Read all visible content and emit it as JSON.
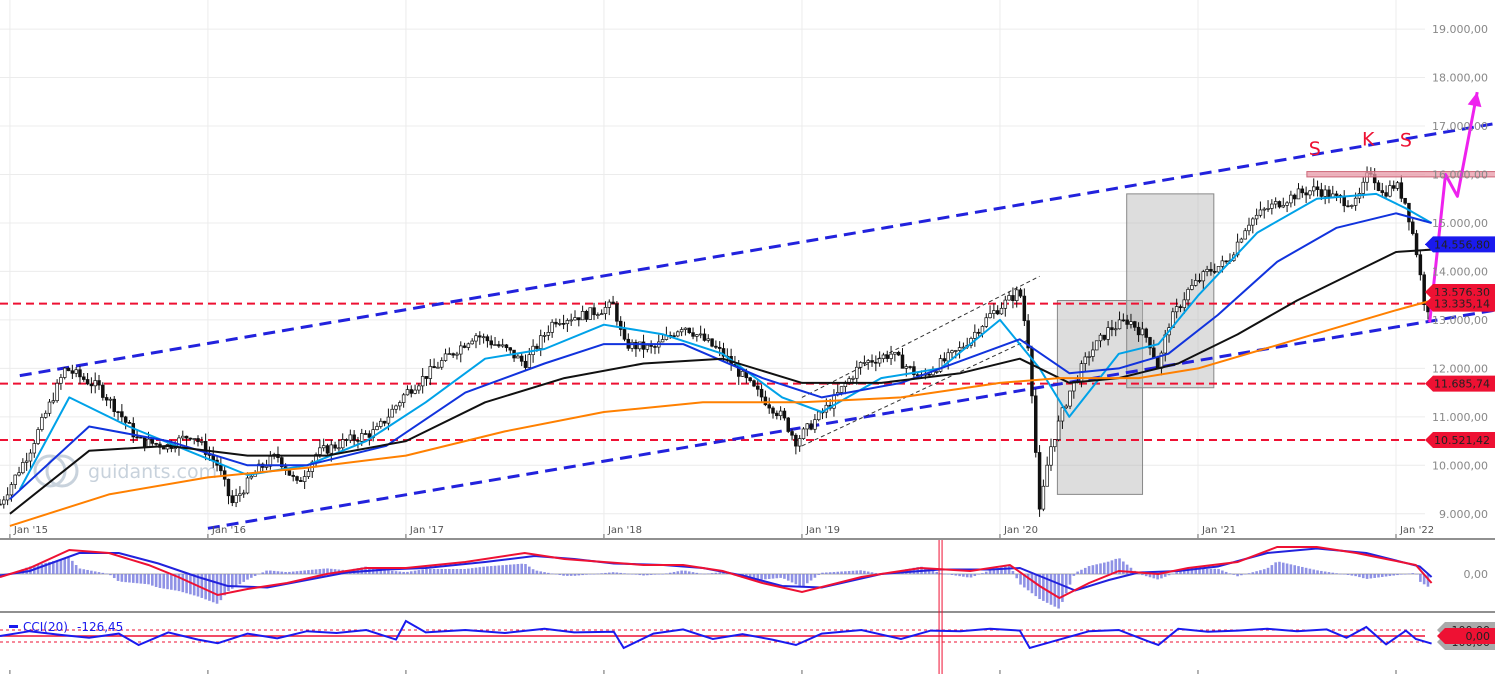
{
  "chart_data": {
    "type": "candlestick",
    "price_axis": {
      "range": [
        8500,
        19600
      ],
      "ticks": [
        "9.000,00",
        "10.000,00",
        "11.000,00",
        "12.000,00",
        "13.000,00",
        "14.000,00",
        "15.000,00",
        "16.000,00",
        "17.000,00",
        "18.000,00",
        "19.000,00"
      ],
      "tick_values": [
        9000,
        10000,
        11000,
        12000,
        13000,
        14000,
        15000,
        16000,
        17000,
        18000,
        19000
      ]
    },
    "time_axis": {
      "range": [
        2014.95,
        2022.5
      ],
      "ticks": [
        "Jan '15",
        "Jan '16",
        "Jan '17",
        "Jan '18",
        "Jan '19",
        "Jan '20",
        "Jan '21",
        "Jan '22"
      ],
      "tick_values": [
        2015,
        2016,
        2017,
        2018,
        2019,
        2020,
        2021,
        2022
      ]
    },
    "price_path": [
      [
        2014.95,
        9200
      ],
      [
        2015.1,
        10300
      ],
      [
        2015.28,
        12000
      ],
      [
        2015.45,
        11600
      ],
      [
        2015.55,
        11100
      ],
      [
        2015.65,
        10500
      ],
      [
        2015.8,
        10400
      ],
      [
        2015.92,
        10650
      ],
      [
        2016.05,
        10000
      ],
      [
        2016.12,
        9200
      ],
      [
        2016.25,
        9900
      ],
      [
        2016.35,
        10200
      ],
      [
        2016.45,
        9600
      ],
      [
        2016.55,
        10250
      ],
      [
        2016.7,
        10500
      ],
      [
        2016.85,
        10700
      ],
      [
        2017.0,
        11500
      ],
      [
        2017.2,
        12200
      ],
      [
        2017.35,
        12700
      ],
      [
        2017.5,
        12400
      ],
      [
        2017.6,
        12100
      ],
      [
        2017.75,
        13000
      ],
      [
        2017.9,
        13100
      ],
      [
        2018.05,
        13300
      ],
      [
        2018.1,
        12500
      ],
      [
        2018.25,
        12400
      ],
      [
        2018.4,
        12900
      ],
      [
        2018.5,
        12600
      ],
      [
        2018.6,
        12300
      ],
      [
        2018.75,
        11600
      ],
      [
        2018.9,
        11000
      ],
      [
        2018.97,
        10500
      ],
      [
        2019.15,
        11300
      ],
      [
        2019.3,
        12100
      ],
      [
        2019.45,
        12300
      ],
      [
        2019.6,
        11800
      ],
      [
        2019.8,
        12400
      ],
      [
        2019.95,
        13100
      ],
      [
        2020.1,
        13600
      ],
      [
        2020.15,
        12300
      ],
      [
        2020.2,
        9000
      ],
      [
        2020.25,
        10300
      ],
      [
        2020.35,
        11500
      ],
      [
        2020.45,
        12300
      ],
      [
        2020.55,
        12800
      ],
      [
        2020.65,
        13000
      ],
      [
        2020.75,
        12600
      ],
      [
        2020.8,
        12000
      ],
      [
        2020.85,
        12900
      ],
      [
        2020.95,
        13600
      ],
      [
        2021.05,
        14000
      ],
      [
        2021.15,
        14200
      ],
      [
        2021.25,
        15000
      ],
      [
        2021.35,
        15300
      ],
      [
        2021.5,
        15600
      ],
      [
        2021.6,
        15700
      ],
      [
        2021.7,
        15500
      ],
      [
        2021.8,
        15400
      ],
      [
        2021.87,
        16100
      ],
      [
        2021.93,
        15600
      ],
      [
        2022.0,
        15800
      ],
      [
        2022.05,
        15400
      ],
      [
        2022.1,
        14500
      ],
      [
        2022.15,
        13200
      ],
      [
        2022.17,
        13300
      ]
    ],
    "series": [
      {
        "name": "",
        "color": "#00a2e8",
        "values": [
          [
            2015.05,
            9500
          ],
          [
            2015.3,
            11400
          ],
          [
            2015.6,
            10800
          ],
          [
            2015.9,
            10300
          ],
          [
            2016.2,
            9800
          ],
          [
            2016.5,
            10000
          ],
          [
            2016.8,
            10500
          ],
          [
            2017.1,
            11300
          ],
          [
            2017.4,
            12200
          ],
          [
            2017.7,
            12400
          ],
          [
            2018.0,
            12900
          ],
          [
            2018.3,
            12700
          ],
          [
            2018.6,
            12300
          ],
          [
            2018.9,
            11400
          ],
          [
            2019.1,
            11100
          ],
          [
            2019.4,
            11800
          ],
          [
            2019.7,
            12000
          ],
          [
            2020.0,
            13000
          ],
          [
            2020.2,
            12000
          ],
          [
            2020.35,
            11000
          ],
          [
            2020.6,
            12300
          ],
          [
            2020.8,
            12500
          ],
          [
            2021.0,
            13500
          ],
          [
            2021.3,
            14800
          ],
          [
            2021.6,
            15500
          ],
          [
            2021.9,
            15600
          ],
          [
            2022.05,
            15300
          ],
          [
            2022.18,
            15000
          ]
        ]
      },
      {
        "name": "",
        "color": "#1133dd",
        "values": [
          [
            2015.0,
            9300
          ],
          [
            2015.4,
            10800
          ],
          [
            2015.8,
            10500
          ],
          [
            2016.2,
            10000
          ],
          [
            2016.5,
            10000
          ],
          [
            2016.9,
            10400
          ],
          [
            2017.3,
            11500
          ],
          [
            2017.7,
            12100
          ],
          [
            2018.0,
            12500
          ],
          [
            2018.4,
            12500
          ],
          [
            2018.8,
            11800
          ],
          [
            2019.1,
            11400
          ],
          [
            2019.5,
            11700
          ],
          [
            2019.9,
            12300
          ],
          [
            2020.1,
            12600
          ],
          [
            2020.35,
            11900
          ],
          [
            2020.6,
            12000
          ],
          [
            2020.85,
            12300
          ],
          [
            2021.1,
            13100
          ],
          [
            2021.4,
            14200
          ],
          [
            2021.7,
            14900
          ],
          [
            2022.0,
            15200
          ],
          [
            2022.18,
            15000
          ]
        ]
      },
      {
        "name": "",
        "color": "#111111",
        "values": [
          [
            2015.0,
            9000
          ],
          [
            2015.4,
            10300
          ],
          [
            2015.8,
            10400
          ],
          [
            2016.2,
            10200
          ],
          [
            2016.6,
            10200
          ],
          [
            2017.0,
            10500
          ],
          [
            2017.4,
            11300
          ],
          [
            2017.8,
            11800
          ],
          [
            2018.2,
            12100
          ],
          [
            2018.6,
            12200
          ],
          [
            2019.0,
            11700
          ],
          [
            2019.4,
            11700
          ],
          [
            2019.8,
            11900
          ],
          [
            2020.1,
            12200
          ],
          [
            2020.35,
            11700
          ],
          [
            2020.6,
            11800
          ],
          [
            2020.9,
            12100
          ],
          [
            2021.2,
            12700
          ],
          [
            2021.5,
            13400
          ],
          [
            2021.8,
            14000
          ],
          [
            2022.0,
            14400
          ],
          [
            2022.18,
            14450
          ]
        ]
      },
      {
        "name": "",
        "color": "#ff8000",
        "values": [
          [
            2015.0,
            8750
          ],
          [
            2015.5,
            9400
          ],
          [
            2016.0,
            9750
          ],
          [
            2016.5,
            9950
          ],
          [
            2017.0,
            10200
          ],
          [
            2017.5,
            10700
          ],
          [
            2018.0,
            11100
          ],
          [
            2018.5,
            11300
          ],
          [
            2019.0,
            11300
          ],
          [
            2019.5,
            11400
          ],
          [
            2020.0,
            11700
          ],
          [
            2020.3,
            11800
          ],
          [
            2020.7,
            11800
          ],
          [
            2021.0,
            12000
          ],
          [
            2021.5,
            12600
          ],
          [
            2022.0,
            13200
          ],
          [
            2022.18,
            13400
          ]
        ]
      }
    ],
    "horizontal_levels": [
      {
        "label": "14.556,80",
        "value": 14556.8,
        "style": "solid",
        "color": "#1a1aee",
        "badge": "#1a1aee"
      },
      {
        "label": "13.576,30",
        "value": 13576.3,
        "style": "solid",
        "color": "#bb2222",
        "badge": "#ee1133"
      },
      {
        "label": "13.335,14",
        "value": 13335.14,
        "style": "dashed",
        "color": "#ee1133",
        "badge": "#ee1133"
      },
      {
        "label": "11.685,74",
        "value": 11685.74,
        "style": "dashed",
        "color": "#ee1133",
        "badge": "#ee1133"
      },
      {
        "label": "10.521,42",
        "value": 10521.42,
        "style": "dashed",
        "color": "#ee1133",
        "badge": "#ee1133"
      }
    ],
    "orange_level": {
      "value": 14450
    },
    "channel_upper": {
      "x": [
        2015.05,
        2022.5
      ],
      "y": [
        11850,
        17050
      ]
    },
    "channel_lower": {
      "x": [
        2016.0,
        2022.5
      ],
      "y": [
        8700,
        13200
      ]
    },
    "thin_channel_upper": {
      "x": [
        2019.0,
        2020.2
      ],
      "y": [
        11400,
        13900
      ]
    },
    "thin_channel_lower": {
      "x": [
        2019.0,
        2020.15
      ],
      "y": [
        10400,
        12600
      ]
    },
    "shaded_boxes": [
      {
        "x": [
          2020.29,
          2020.72
        ],
        "y": [
          9400,
          13400
        ]
      },
      {
        "x": [
          2020.64,
          2021.08
        ],
        "y": [
          11600,
          15600
        ]
      }
    ],
    "resistance_zone": {
      "x": [
        2021.55,
        2022.56
      ],
      "y": [
        15950,
        16060
      ]
    },
    "head_shoulders_labels": [
      {
        "text": "S",
        "x": 2021.59,
        "y": 16400
      },
      {
        "text": "K",
        "x": 2021.86,
        "y": 16600
      },
      {
        "text": "S",
        "x": 2022.05,
        "y": 16580
      }
    ],
    "projection_arrow": {
      "path": [
        [
          2022.17,
          12950
        ],
        [
          2022.25,
          16000
        ],
        [
          2022.31,
          15550
        ],
        [
          2022.41,
          17700
        ]
      ],
      "color": "#ee22ee"
    },
    "macd": {
      "zero_label": "0,00",
      "line": [
        [
          2014.95,
          -0.1
        ],
        [
          2015.1,
          0.2
        ],
        [
          2015.3,
          0.8
        ],
        [
          2015.5,
          0.7
        ],
        [
          2015.7,
          0.3
        ],
        [
          2015.85,
          -0.1
        ],
        [
          2016.05,
          -0.7
        ],
        [
          2016.2,
          -0.5
        ],
        [
          2016.4,
          -0.3
        ],
        [
          2016.6,
          0.0
        ],
        [
          2016.8,
          0.2
        ],
        [
          2017.0,
          0.2
        ],
        [
          2017.3,
          0.4
        ],
        [
          2017.6,
          0.7
        ],
        [
          2017.8,
          0.5
        ],
        [
          2018.0,
          0.4
        ],
        [
          2018.2,
          0.3
        ],
        [
          2018.4,
          0.3
        ],
        [
          2018.6,
          0.1
        ],
        [
          2018.8,
          -0.3
        ],
        [
          2019.0,
          -0.6
        ],
        [
          2019.3,
          -0.1
        ],
        [
          2019.6,
          0.2
        ],
        [
          2019.85,
          0.1
        ],
        [
          2020.05,
          0.3
        ],
        [
          2020.2,
          -0.4
        ],
        [
          2020.3,
          -0.8
        ],
        [
          2020.45,
          -0.3
        ],
        [
          2020.6,
          0.1
        ],
        [
          2020.8,
          0.0
        ],
        [
          2020.95,
          0.2
        ],
        [
          2021.2,
          0.4
        ],
        [
          2021.4,
          0.9
        ],
        [
          2021.6,
          0.9
        ],
        [
          2021.8,
          0.7
        ],
        [
          2021.95,
          0.5
        ],
        [
          2022.1,
          0.3
        ],
        [
          2022.18,
          -0.3
        ]
      ],
      "signal": [
        [
          2014.95,
          -0.05
        ],
        [
          2015.1,
          0.1
        ],
        [
          2015.35,
          0.7
        ],
        [
          2015.55,
          0.7
        ],
        [
          2015.75,
          0.35
        ],
        [
          2015.95,
          -0.1
        ],
        [
          2016.1,
          -0.4
        ],
        [
          2016.3,
          -0.45
        ],
        [
          2016.5,
          -0.2
        ],
        [
          2016.7,
          0.05
        ],
        [
          2016.9,
          0.15
        ],
        [
          2017.1,
          0.2
        ],
        [
          2017.4,
          0.4
        ],
        [
          2017.65,
          0.6
        ],
        [
          2017.85,
          0.5
        ],
        [
          2018.05,
          0.35
        ],
        [
          2018.3,
          0.3
        ],
        [
          2018.5,
          0.2
        ],
        [
          2018.7,
          -0.05
        ],
        [
          2018.9,
          -0.4
        ],
        [
          2019.1,
          -0.45
        ],
        [
          2019.4,
          0.0
        ],
        [
          2019.7,
          0.15
        ],
        [
          2019.95,
          0.15
        ],
        [
          2020.1,
          0.2
        ],
        [
          2020.25,
          -0.2
        ],
        [
          2020.38,
          -0.55
        ],
        [
          2020.55,
          -0.2
        ],
        [
          2020.7,
          0.05
        ],
        [
          2020.9,
          0.1
        ],
        [
          2021.1,
          0.25
        ],
        [
          2021.35,
          0.7
        ],
        [
          2021.6,
          0.85
        ],
        [
          2021.85,
          0.7
        ],
        [
          2022.0,
          0.45
        ],
        [
          2022.12,
          0.25
        ],
        [
          2022.18,
          -0.1
        ]
      ]
    },
    "cci": {
      "legend": "CCI(20)",
      "value": "-126,45",
      "zero_label": "0,00",
      "upper_label": "100,00",
      "lower_label": "-100,00",
      "line": [
        [
          2014.95,
          0
        ],
        [
          2015.1,
          80
        ],
        [
          2015.25,
          20
        ],
        [
          2015.4,
          -30
        ],
        [
          2015.55,
          40
        ],
        [
          2015.65,
          -150
        ],
        [
          2015.8,
          60
        ],
        [
          2015.95,
          -60
        ],
        [
          2016.05,
          -120
        ],
        [
          2016.2,
          40
        ],
        [
          2016.35,
          -40
        ],
        [
          2016.5,
          80
        ],
        [
          2016.65,
          50
        ],
        [
          2016.8,
          100
        ],
        [
          2016.95,
          -60
        ],
        [
          2017.0,
          250
        ],
        [
          2017.1,
          60
        ],
        [
          2017.3,
          100
        ],
        [
          2017.5,
          50
        ],
        [
          2017.7,
          120
        ],
        [
          2017.85,
          60
        ],
        [
          2018.05,
          70
        ],
        [
          2018.1,
          -200
        ],
        [
          2018.25,
          40
        ],
        [
          2018.4,
          110
        ],
        [
          2018.55,
          -50
        ],
        [
          2018.7,
          30
        ],
        [
          2018.85,
          -60
        ],
        [
          2018.97,
          -150
        ],
        [
          2019.1,
          40
        ],
        [
          2019.3,
          100
        ],
        [
          2019.5,
          -50
        ],
        [
          2019.65,
          90
        ],
        [
          2019.8,
          80
        ],
        [
          2019.95,
          120
        ],
        [
          2020.1,
          90
        ],
        [
          2020.15,
          -200
        ],
        [
          2020.3,
          -60
        ],
        [
          2020.45,
          80
        ],
        [
          2020.6,
          100
        ],
        [
          2020.75,
          -90
        ],
        [
          2020.8,
          -150
        ],
        [
          2020.9,
          120
        ],
        [
          2021.05,
          70
        ],
        [
          2021.2,
          90
        ],
        [
          2021.35,
          120
        ],
        [
          2021.5,
          80
        ],
        [
          2021.65,
          110
        ],
        [
          2021.75,
          -30
        ],
        [
          2021.85,
          150
        ],
        [
          2021.95,
          -140
        ],
        [
          2022.05,
          90
        ],
        [
          2022.1,
          -50
        ],
        [
          2022.18,
          -126
        ]
      ]
    },
    "highlight_x": 2019.7
  },
  "watermark": "guidants.com"
}
